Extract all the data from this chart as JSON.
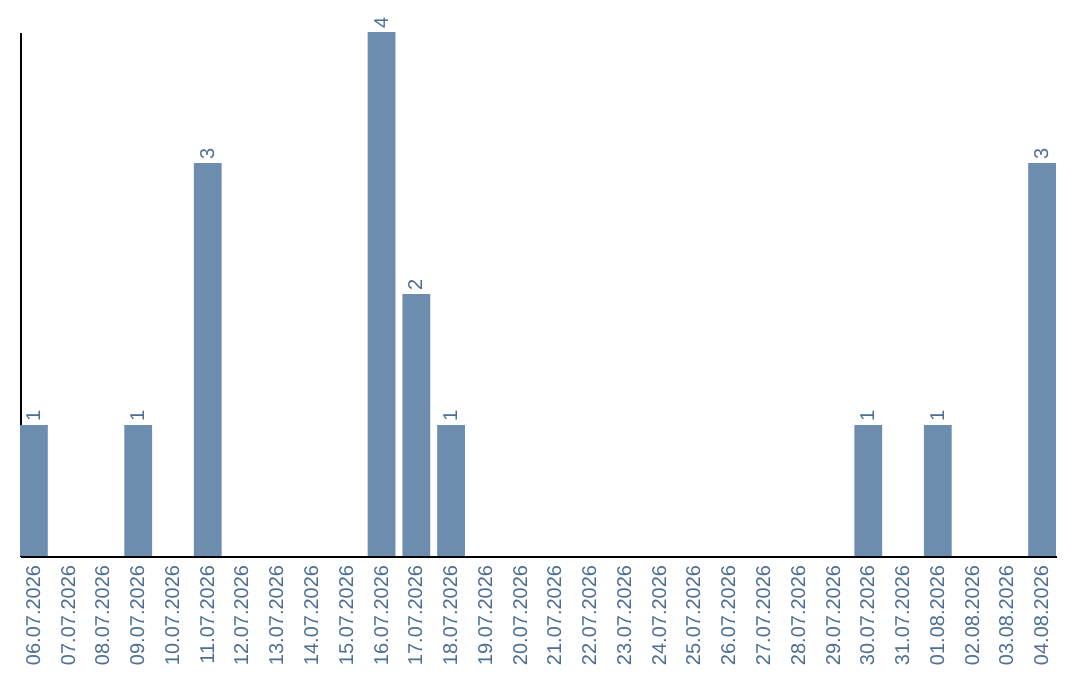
{
  "chart_data": {
    "type": "bar",
    "categories": [
      "06.07.2026",
      "07.07.2026",
      "08.07.2026",
      "09.07.2026",
      "10.07.2026",
      "11.07.2026",
      "12.07.2026",
      "13.07.2026",
      "14.07.2026",
      "15.07.2026",
      "16.07.2026",
      "17.07.2026",
      "18.07.2026",
      "19.07.2026",
      "20.07.2026",
      "21.07.2026",
      "22.07.2026",
      "23.07.2026",
      "24.07.2026",
      "25.07.2026",
      "26.07.2026",
      "27.07.2026",
      "28.07.2026",
      "29.07.2026",
      "30.07.2026",
      "31.07.2026",
      "01.08.2026",
      "02.08.2026",
      "03.08.2026",
      "04.08.2026"
    ],
    "values": [
      1,
      0,
      0,
      1,
      0,
      3,
      0,
      0,
      0,
      0,
      4,
      2,
      1,
      0,
      0,
      0,
      0,
      0,
      0,
      0,
      0,
      0,
      0,
      0,
      1,
      0,
      1,
      0,
      0,
      3
    ],
    "value_labels": [
      "1",
      null,
      null,
      "1",
      null,
      "3",
      null,
      null,
      null,
      null,
      "4",
      "2",
      "1",
      null,
      null,
      null,
      null,
      null,
      null,
      null,
      null,
      null,
      null,
      null,
      "1",
      null,
      "1",
      null,
      null,
      "3"
    ],
    "color": "#6d8daf",
    "tick_labels": "x"
  }
}
